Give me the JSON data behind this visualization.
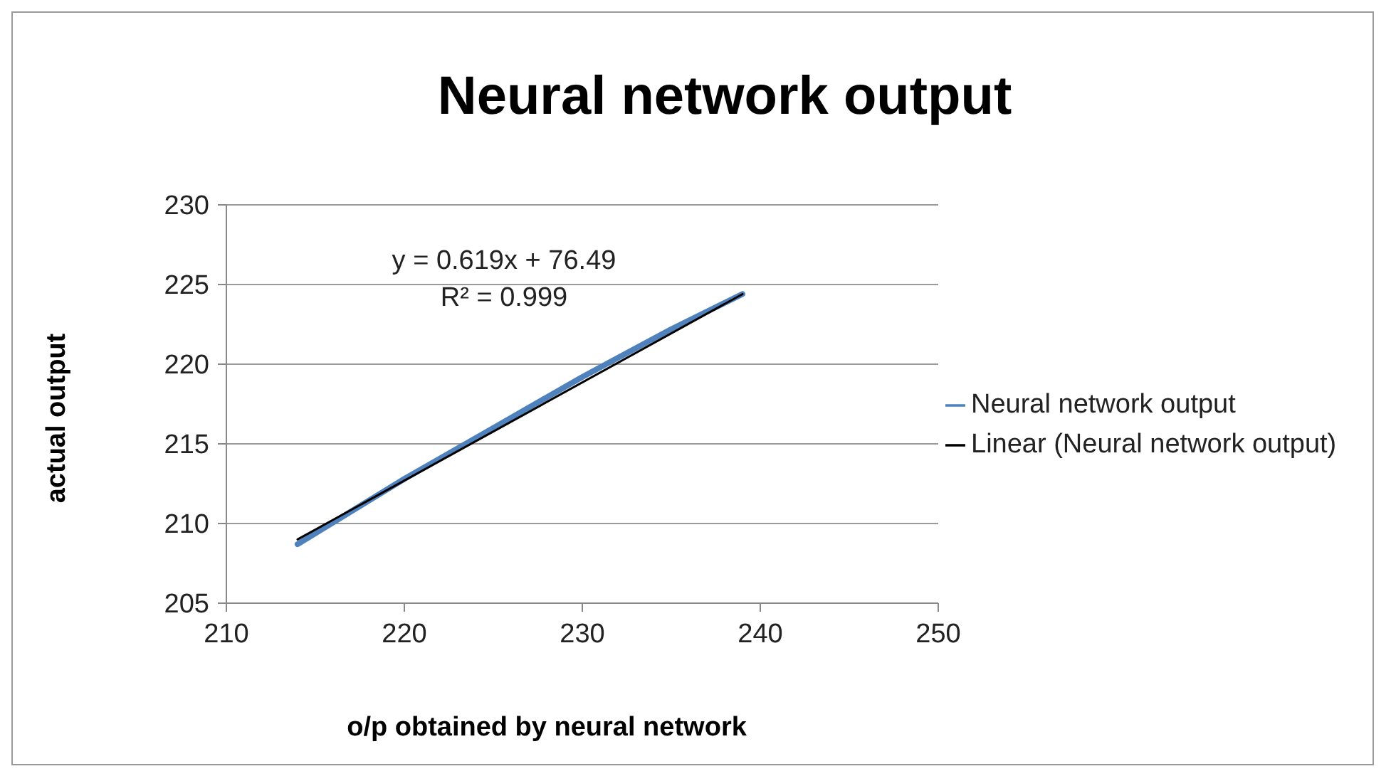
{
  "chart_data": {
    "type": "line",
    "title": "Neural network output",
    "xlabel": "o/p obtained by neural network",
    "ylabel": "actual output",
    "x": [
      214,
      220,
      225,
      230,
      235,
      239
    ],
    "series": [
      {
        "name": "Neural network output",
        "color": "#4f81bd",
        "values": [
          208.7,
          212.8,
          216.0,
          219.2,
          222.2,
          224.4
        ]
      },
      {
        "name": "Linear (Neural network output)",
        "color": "#000000",
        "x": [
          214,
          239
        ],
        "values": [
          209.0,
          224.4
        ]
      }
    ],
    "xlim": [
      210,
      250
    ],
    "xticks": [
      210,
      220,
      230,
      240,
      250
    ],
    "ylim": [
      205,
      230
    ],
    "yticks": [
      205,
      210,
      215,
      220,
      225,
      230
    ],
    "grid": "y",
    "legend": "right",
    "marker": "none",
    "annotations": [
      "y = 0.619x + 76.49",
      "R² = 0.999"
    ]
  }
}
